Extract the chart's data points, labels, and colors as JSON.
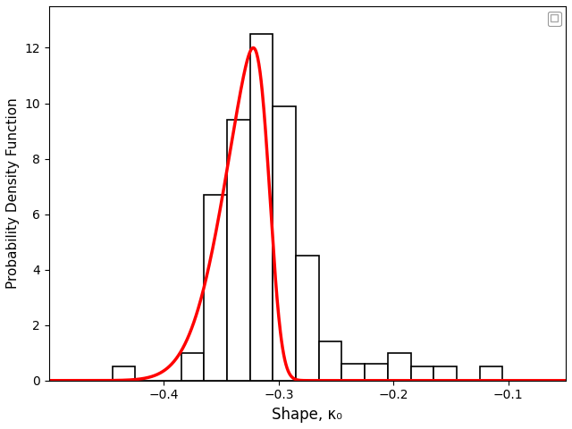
{
  "xlabel": "Shape, κ₀",
  "ylabel": "Probability Density Function",
  "xlim": [
    -0.5,
    -0.05
  ],
  "ylim": [
    0,
    13.5
  ],
  "yticks": [
    0,
    2,
    4,
    6,
    8,
    10,
    12
  ],
  "xticks": [
    -0.4,
    -0.3,
    -0.2,
    -0.1
  ],
  "hist_color": "white",
  "hist_edgecolor": "black",
  "kde_color": "red",
  "kde_linewidth": 2.5,
  "bin_edges": [
    -0.465,
    -0.445,
    -0.425,
    -0.405,
    -0.385,
    -0.365,
    -0.345,
    -0.325,
    -0.305,
    -0.285,
    -0.265,
    -0.245,
    -0.225,
    -0.205,
    -0.185,
    -0.165,
    -0.145,
    -0.125,
    -0.105,
    -0.085
  ],
  "bar_heights": [
    0.0,
    0.5,
    0.0,
    0.0,
    1.0,
    6.7,
    9.4,
    12.5,
    9.9,
    4.5,
    1.4,
    0.6,
    0.6,
    1.0,
    0.5,
    0.5,
    0.0,
    0.5,
    0.0
  ],
  "kde_mu": -0.308,
  "kde_sigma": 0.034,
  "kde_skew_alpha": -4.0,
  "background_color": "white"
}
